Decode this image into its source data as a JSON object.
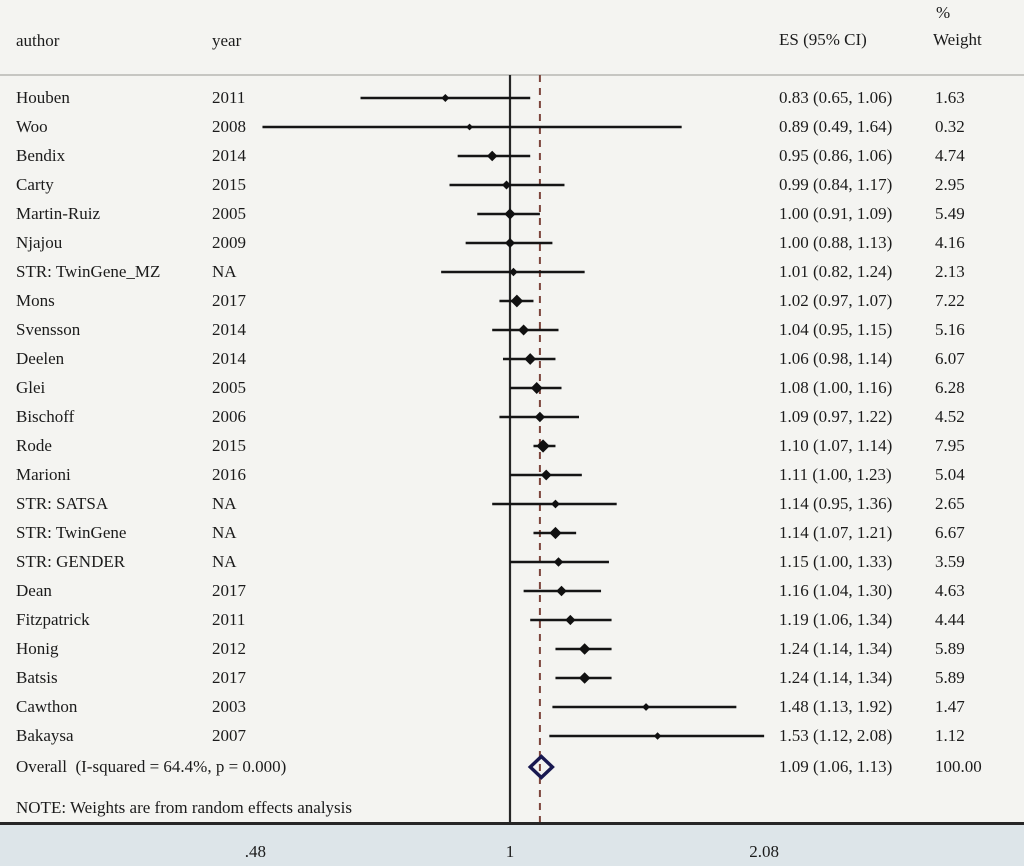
{
  "header": {
    "author": "author",
    "year": "year",
    "es_ci": "ES (95% CI)",
    "percent": "%",
    "weight": "Weight"
  },
  "note": "NOTE: Weights are from random effects analysis",
  "overall": {
    "label": "Overall  (I-squared = 64.4%, p = 0.000)",
    "es": 1.09,
    "lo": 1.06,
    "hi": 1.13,
    "es_ci_text": "1.09 (1.06, 1.13)",
    "weight_text": "100.00"
  },
  "axis": {
    "scale": "log",
    "ticks": [
      {
        "label": ".48",
        "value": 0.48
      },
      {
        "label": "1",
        "value": 1.0
      },
      {
        "label": "2.08",
        "value": 2.08
      }
    ]
  },
  "colors": {
    "null_line": "#262626",
    "dashed_line": "#7d453c",
    "ci_line": "#151515",
    "marker": "#111111",
    "overall_diamond_stroke": "#181850",
    "axis_strip_bg": "#dde5e9",
    "plot_bg": "#f4f4f1",
    "header_rule": "#c6c6c2",
    "bottom_rule": "#262626",
    "text": "#1b1b1b"
  },
  "chart_data": {
    "type": "scatter",
    "subtype": "forest-plot",
    "x_scale": "log",
    "x_ticks": [
      0.48,
      1.0,
      2.08
    ],
    "null_value": 1.0,
    "overall": {
      "es": 1.09,
      "lo": 1.06,
      "hi": 1.13,
      "weight": 100.0
    },
    "studies": [
      {
        "author": "Houben",
        "year": "2011",
        "es": 0.83,
        "lo": 0.65,
        "hi": 1.06,
        "weight": 1.63,
        "es_ci_text": "0.83 (0.65, 1.06)",
        "weight_text": "1.63"
      },
      {
        "author": "Woo",
        "year": "2008",
        "es": 0.89,
        "lo": 0.49,
        "hi": 1.64,
        "weight": 0.32,
        "es_ci_text": "0.89 (0.49, 1.64)",
        "weight_text": "0.32"
      },
      {
        "author": "Bendix",
        "year": "2014",
        "es": 0.95,
        "lo": 0.86,
        "hi": 1.06,
        "weight": 4.74,
        "es_ci_text": "0.95 (0.86, 1.06)",
        "weight_text": "4.74"
      },
      {
        "author": "Carty",
        "year": "2015",
        "es": 0.99,
        "lo": 0.84,
        "hi": 1.17,
        "weight": 2.95,
        "es_ci_text": "0.99 (0.84, 1.17)",
        "weight_text": "2.95"
      },
      {
        "author": "Martin-Ruiz",
        "year": "2005",
        "es": 1.0,
        "lo": 0.91,
        "hi": 1.09,
        "weight": 5.49,
        "es_ci_text": "1.00 (0.91, 1.09)",
        "weight_text": "5.49"
      },
      {
        "author": "Njajou",
        "year": "2009",
        "es": 1.0,
        "lo": 0.88,
        "hi": 1.13,
        "weight": 4.16,
        "es_ci_text": "1.00 (0.88, 1.13)",
        "weight_text": "4.16"
      },
      {
        "author": "STR: TwinGene_MZ",
        "year": "NA",
        "es": 1.01,
        "lo": 0.82,
        "hi": 1.24,
        "weight": 2.13,
        "es_ci_text": "1.01 (0.82, 1.24)",
        "weight_text": "2.13"
      },
      {
        "author": "Mons",
        "year": "2017",
        "es": 1.02,
        "lo": 0.97,
        "hi": 1.07,
        "weight": 7.22,
        "es_ci_text": "1.02 (0.97, 1.07)",
        "weight_text": "7.22"
      },
      {
        "author": "Svensson",
        "year": "2014",
        "es": 1.04,
        "lo": 0.95,
        "hi": 1.15,
        "weight": 5.16,
        "es_ci_text": "1.04 (0.95, 1.15)",
        "weight_text": "5.16"
      },
      {
        "author": "Deelen",
        "year": "2014",
        "es": 1.06,
        "lo": 0.98,
        "hi": 1.14,
        "weight": 6.07,
        "es_ci_text": "1.06 (0.98, 1.14)",
        "weight_text": "6.07"
      },
      {
        "author": "Glei",
        "year": "2005",
        "es": 1.08,
        "lo": 1.0,
        "hi": 1.16,
        "weight": 6.28,
        "es_ci_text": "1.08 (1.00, 1.16)",
        "weight_text": "6.28"
      },
      {
        "author": "Bischoff",
        "year": "2006",
        "es": 1.09,
        "lo": 0.97,
        "hi": 1.22,
        "weight": 4.52,
        "es_ci_text": "1.09 (0.97, 1.22)",
        "weight_text": "4.52"
      },
      {
        "author": "Rode",
        "year": "2015",
        "es": 1.1,
        "lo": 1.07,
        "hi": 1.14,
        "weight": 7.95,
        "es_ci_text": "1.10 (1.07, 1.14)",
        "weight_text": "7.95"
      },
      {
        "author": "Marioni",
        "year": "2016",
        "es": 1.11,
        "lo": 1.0,
        "hi": 1.23,
        "weight": 5.04,
        "es_ci_text": "1.11 (1.00, 1.23)",
        "weight_text": "5.04"
      },
      {
        "author": "STR: SATSA",
        "year": "NA",
        "es": 1.14,
        "lo": 0.95,
        "hi": 1.36,
        "weight": 2.65,
        "es_ci_text": "1.14 (0.95, 1.36)",
        "weight_text": "2.65"
      },
      {
        "author": "STR: TwinGene",
        "year": "NA",
        "es": 1.14,
        "lo": 1.07,
        "hi": 1.21,
        "weight": 6.67,
        "es_ci_text": "1.14 (1.07, 1.21)",
        "weight_text": "6.67"
      },
      {
        "author": "STR: GENDER",
        "year": "NA",
        "es": 1.15,
        "lo": 1.0,
        "hi": 1.33,
        "weight": 3.59,
        "es_ci_text": "1.15 (1.00, 1.33)",
        "weight_text": "3.59"
      },
      {
        "author": "Dean",
        "year": "2017",
        "es": 1.16,
        "lo": 1.04,
        "hi": 1.3,
        "weight": 4.63,
        "es_ci_text": "1.16 (1.04, 1.30)",
        "weight_text": "4.63"
      },
      {
        "author": "Fitzpatrick",
        "year": "2011",
        "es": 1.19,
        "lo": 1.06,
        "hi": 1.34,
        "weight": 4.44,
        "es_ci_text": "1.19 (1.06, 1.34)",
        "weight_text": "4.44"
      },
      {
        "author": "Honig",
        "year": "2012",
        "es": 1.24,
        "lo": 1.14,
        "hi": 1.34,
        "weight": 5.89,
        "es_ci_text": "1.24 (1.14, 1.34)",
        "weight_text": "5.89"
      },
      {
        "author": "Batsis",
        "year": "2017",
        "es": 1.24,
        "lo": 1.14,
        "hi": 1.34,
        "weight": 5.89,
        "es_ci_text": "1.24 (1.14, 1.34)",
        "weight_text": "5.89"
      },
      {
        "author": "Cawthon",
        "year": "2003",
        "es": 1.48,
        "lo": 1.13,
        "hi": 1.92,
        "weight": 1.47,
        "es_ci_text": "1.48 (1.13, 1.92)",
        "weight_text": "1.47"
      },
      {
        "author": "Bakaysa",
        "year": "2007",
        "es": 1.53,
        "lo": 1.12,
        "hi": 2.08,
        "weight": 1.12,
        "es_ci_text": "1.53 (1.12, 2.08)",
        "weight_text": "1.12"
      }
    ]
  }
}
